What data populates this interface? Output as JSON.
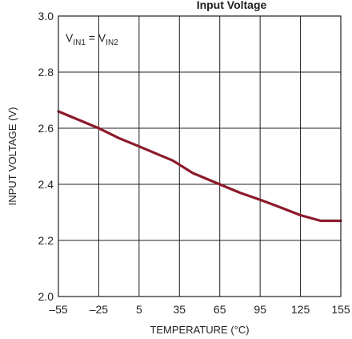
{
  "chart_data": {
    "type": "line",
    "title": "Input Voltage",
    "xlabel": "TEMPERATURE (°C)",
    "ylabel": "INPUT VOLTAGE (V)",
    "xlim": [
      -55,
      155
    ],
    "ylim": [
      2.0,
      3.0
    ],
    "xticks": [
      "-55",
      "-25",
      "5",
      "35",
      "65",
      "95",
      "125",
      "155"
    ],
    "xtick_values": [
      -55,
      -25,
      5,
      35,
      65,
      95,
      125,
      155
    ],
    "yticks": [
      "2.0",
      "2.2",
      "2.4",
      "2.6",
      "2.8",
      "3.0"
    ],
    "ytick_values": [
      2.0,
      2.2,
      2.4,
      2.6,
      2.8,
      3.0
    ],
    "grid": true,
    "legend": "none",
    "annotation": {
      "text_parts": [
        {
          "t": "V",
          "sub": false
        },
        {
          "t": "IN1",
          "sub": true
        },
        {
          "t": " = V",
          "sub": false
        },
        {
          "t": "IN2",
          "sub": true
        }
      ]
    },
    "series": [
      {
        "color": "#8b1a2b",
        "x": [
          -55,
          -40,
          -25,
          -10,
          5,
          20,
          30,
          45,
          65,
          80,
          95,
          110,
          125,
          140,
          155
        ],
        "y": [
          2.66,
          2.63,
          2.6,
          2.565,
          2.535,
          2.505,
          2.485,
          2.44,
          2.4,
          2.37,
          2.345,
          2.318,
          2.29,
          2.27,
          2.27
        ]
      }
    ]
  }
}
